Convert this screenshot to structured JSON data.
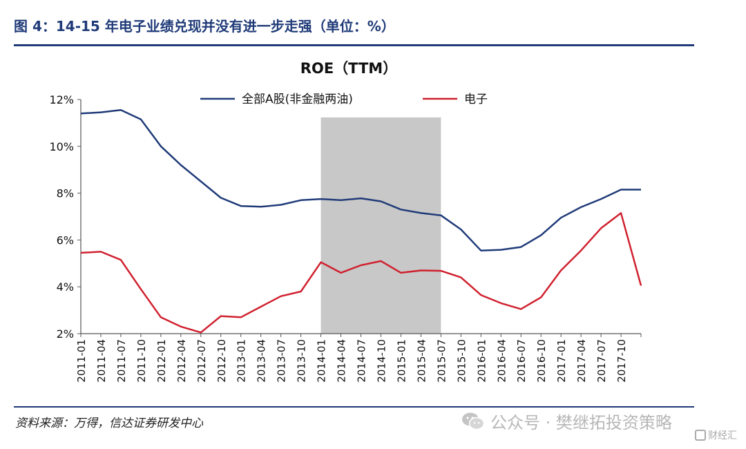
{
  "header": {
    "figure_title": "图 4：14-15 年电子业绩兑现并没有进一步走强（单位：%）"
  },
  "footer": {
    "source": "资料来源：万得，信达证券研发中心"
  },
  "watermark": {
    "text": "公众号 · 樊继拓投资策略",
    "logo_text": "财经汇",
    "icon": "wechat-icon"
  },
  "colors": {
    "series_all_a": "#1f3a78",
    "series_electronics": "#d0202e",
    "shaded_region": "#c8c8c8",
    "accent": "#1f3a78"
  },
  "chart_data": {
    "type": "line",
    "title": "ROE（TTM）",
    "xlabel": "",
    "ylabel": "",
    "ylim": [
      2,
      12
    ],
    "y_ticks": [
      "2%",
      "4%",
      "6%",
      "8%",
      "10%",
      "12%"
    ],
    "y_tick_values": [
      2,
      4,
      6,
      8,
      10,
      12
    ],
    "legend_position": "top-center",
    "grid": false,
    "x": [
      "2011-01",
      "2011-04",
      "2011-07",
      "2011-10",
      "2012-01",
      "2012-04",
      "2012-07",
      "2012-10",
      "2013-01",
      "2013-04",
      "2013-07",
      "2013-10",
      "2014-01",
      "2014-04",
      "2014-07",
      "2014-10",
      "2015-01",
      "2015-04",
      "2015-07",
      "2015-10",
      "2016-01",
      "2016-04",
      "2016-07",
      "2016-10",
      "2017-01",
      "2017-04",
      "2017-07",
      "2017-10",
      "2018-01"
    ],
    "x_tick_labels": [
      "2011-01",
      "2011-04",
      "2011-07",
      "2011-10",
      "2012-01",
      "2012-04",
      "2012-07",
      "2012-10",
      "2013-01",
      "2013-04",
      "2013-07",
      "2013-10",
      "2014-01",
      "2014-04",
      "2014-07",
      "2014-10",
      "2015-01",
      "2015-04",
      "2015-07",
      "2015-10",
      "2016-01",
      "2016-04",
      "2016-07",
      "2016-10",
      "2017-01",
      "2017-04",
      "2017-07",
      "2017-10"
    ],
    "shaded_range": [
      "2014-01",
      "2015-07"
    ],
    "series": [
      {
        "name": "全部A股(非金融两油)",
        "values": [
          11.4,
          11.45,
          11.55,
          11.15,
          10.0,
          9.2,
          8.5,
          7.8,
          7.45,
          7.42,
          7.5,
          7.7,
          7.75,
          7.7,
          7.78,
          7.65,
          7.3,
          7.15,
          7.05,
          6.45,
          5.55,
          5.58,
          5.7,
          6.2,
          6.95,
          7.4,
          7.75,
          8.15,
          8.15
        ]
      },
      {
        "name": "电子",
        "values": [
          5.45,
          5.5,
          5.15,
          3.9,
          2.7,
          2.3,
          2.05,
          2.75,
          2.7,
          3.15,
          3.6,
          3.8,
          5.05,
          4.6,
          4.92,
          5.1,
          4.6,
          4.7,
          4.68,
          4.4,
          3.65,
          3.3,
          3.05,
          3.55,
          4.7,
          5.55,
          6.5,
          7.15,
          4.05
        ]
      }
    ]
  }
}
